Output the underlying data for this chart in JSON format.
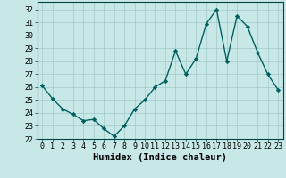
{
  "x": [
    0,
    1,
    2,
    3,
    4,
    5,
    6,
    7,
    8,
    9,
    10,
    11,
    12,
    13,
    14,
    15,
    16,
    17,
    18,
    19,
    20,
    21,
    22,
    23
  ],
  "y": [
    26.1,
    25.1,
    24.3,
    23.9,
    23.4,
    23.5,
    22.8,
    22.2,
    23.0,
    24.3,
    25.0,
    26.0,
    26.5,
    28.8,
    27.0,
    28.2,
    30.9,
    32.0,
    28.0,
    31.5,
    30.7,
    28.7,
    27.0,
    25.8
  ],
  "line_color": "#006060",
  "marker": "D",
  "marker_size": 2.2,
  "line_width": 1.0,
  "bg_color": "#c8e8e8",
  "grid_color": "#a0c8c8",
  "xlabel": "Humidex (Indice chaleur)",
  "xlim": [
    -0.5,
    23.5
  ],
  "ylim": [
    22,
    32.6
  ],
  "yticks": [
    22,
    23,
    24,
    25,
    26,
    27,
    28,
    29,
    30,
    31,
    32
  ],
  "xticks": [
    0,
    1,
    2,
    3,
    4,
    5,
    6,
    7,
    8,
    9,
    10,
    11,
    12,
    13,
    14,
    15,
    16,
    17,
    18,
    19,
    20,
    21,
    22,
    23
  ],
  "xtick_labels": [
    "0",
    "1",
    "2",
    "3",
    "4",
    "5",
    "6",
    "7",
    "8",
    "9",
    "10",
    "11",
    "12",
    "13",
    "14",
    "15",
    "16",
    "17",
    "18",
    "19",
    "20",
    "21",
    "22",
    "23"
  ],
  "xlabel_fontsize": 7.5,
  "tick_fontsize": 6.0
}
